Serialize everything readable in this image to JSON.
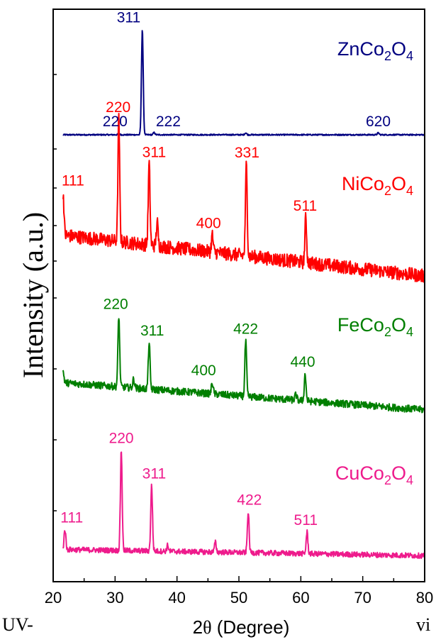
{
  "chart_data": {
    "type": "line",
    "xlabel": "2θ (Degree)",
    "ylabel": "Intensity (a.u.)",
    "xlim": [
      20,
      80
    ],
    "xticks": [
      20,
      30,
      40,
      50,
      60,
      70,
      80
    ],
    "stacked": true,
    "series": [
      {
        "name": "ZnCo2O4",
        "formula": [
          "ZnCo",
          "2",
          "O",
          "4"
        ],
        "color": "#000080",
        "baseline": 0.0,
        "noise": 0.12,
        "peaks": [
          {
            "x": 30.6,
            "h": 0.25,
            "label": "220",
            "lx": 30.0
          },
          {
            "x": 34.4,
            "h": 16.5,
            "label": "311",
            "lx": 32.2
          },
          {
            "x": 36.3,
            "h": 0.35,
            "label": "222",
            "lx": 38.6
          },
          {
            "x": 51.1,
            "h": 0.3
          },
          {
            "x": 72.5,
            "h": 0.3,
            "label": "620",
            "lx": 72.5
          }
        ]
      },
      {
        "name": "NiCo2O4",
        "formula": [
          "NiCo",
          "2",
          "O",
          "4"
        ],
        "color": "#ff0000",
        "baseline": 4.6,
        "noise": 0.8,
        "peaks": [
          {
            "x": 21.6,
            "h": 4.0,
            "label": "111",
            "lx": 23.2
          },
          {
            "x": 30.6,
            "h": 11.5,
            "label": "220",
            "lx": 30.5
          },
          {
            "x": 35.5,
            "h": 7.6,
            "label": "311",
            "lx": 36.3
          },
          {
            "x": 36.8,
            "h": 2.2
          },
          {
            "x": 45.7,
            "h": 1.6,
            "label": "400",
            "lx": 45.1
          },
          {
            "x": 51.2,
            "h": 8.6,
            "label": "331",
            "lx": 51.3
          },
          {
            "x": 60.8,
            "h": 4.2,
            "label": "511",
            "lx": 60.7
          }
        ]
      },
      {
        "name": "FeCo2O4",
        "formula": [
          "FeCo",
          "2",
          "O",
          "4"
        ],
        "color": "#007f00",
        "baseline": 4.0,
        "noise": 0.55,
        "peaks": [
          {
            "x": 21.6,
            "h": 1.4
          },
          {
            "x": 30.6,
            "h": 8.7,
            "label": "220",
            "lx": 30.1
          },
          {
            "x": 33.0,
            "h": 1.1
          },
          {
            "x": 35.5,
            "h": 5.7,
            "label": "311",
            "lx": 36.0
          },
          {
            "x": 45.7,
            "h": 1.4,
            "label": "400",
            "lx": 44.3
          },
          {
            "x": 51.1,
            "h": 6.8,
            "label": "422",
            "lx": 51.1
          },
          {
            "x": 59.2,
            "h": 0.7
          },
          {
            "x": 60.7,
            "h": 3.3,
            "label": "440",
            "lx": 60.3
          }
        ]
      },
      {
        "name": "CuCo2O4",
        "formula": [
          "CuCo",
          "2",
          "O",
          "4"
        ],
        "color": "#ee1b8c",
        "baseline": 1.0,
        "noise": 0.45,
        "peaks": [
          {
            "x": 21.9,
            "h": 2.7,
            "label": "111",
            "lx": 23.0
          },
          {
            "x": 31.0,
            "h": 13.5,
            "label": "220",
            "lx": 31.0
          },
          {
            "x": 35.9,
            "h": 8.8,
            "label": "311",
            "lx": 36.3
          },
          {
            "x": 38.5,
            "h": 0.8
          },
          {
            "x": 46.2,
            "h": 1.3
          },
          {
            "x": 51.5,
            "h": 5.5,
            "label": "422",
            "lx": 51.7
          },
          {
            "x": 61.0,
            "h": 2.9,
            "label": "511",
            "lx": 60.8
          }
        ]
      }
    ]
  },
  "margin_text": {
    "left": "UV-",
    "right": "vi"
  }
}
